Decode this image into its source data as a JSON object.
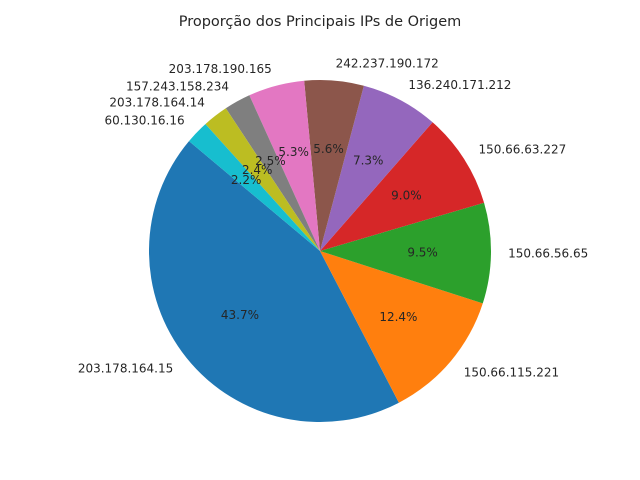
{
  "chart_data": {
    "type": "pie",
    "title": "Proporção dos Principais IPs de Origem",
    "start_angle": 140,
    "direction": "counterclockwise",
    "slices": [
      {
        "label": "203.178.164.15",
        "value": 43.7,
        "pct_label": "43.7%",
        "color": "#1f77b4"
      },
      {
        "label": "150.66.115.221",
        "value": 12.4,
        "pct_label": "12.4%",
        "color": "#ff7f0e"
      },
      {
        "label": "150.66.56.65",
        "value": 9.5,
        "pct_label": "9.5%",
        "color": "#2ca02c"
      },
      {
        "label": "150.66.63.227",
        "value": 9.0,
        "pct_label": "9.0%",
        "color": "#d62728"
      },
      {
        "label": "136.240.171.212",
        "value": 7.3,
        "pct_label": "7.3%",
        "color": "#9467bd"
      },
      {
        "label": "242.237.190.172",
        "value": 5.6,
        "pct_label": "5.6%",
        "color": "#8c564b"
      },
      {
        "label": "203.178.190.165",
        "value": 5.3,
        "pct_label": "5.3%",
        "color": "#e377c2"
      },
      {
        "label": "157.243.158.234",
        "value": 2.5,
        "pct_label": "2.5%",
        "color": "#7f7f7f"
      },
      {
        "label": "203.178.164.14",
        "value": 2.4,
        "pct_label": "2.4%",
        "color": "#bcbd22"
      },
      {
        "label": "60.130.16.16",
        "value": 2.2,
        "pct_label": "2.2%",
        "color": "#17becf"
      }
    ]
  }
}
